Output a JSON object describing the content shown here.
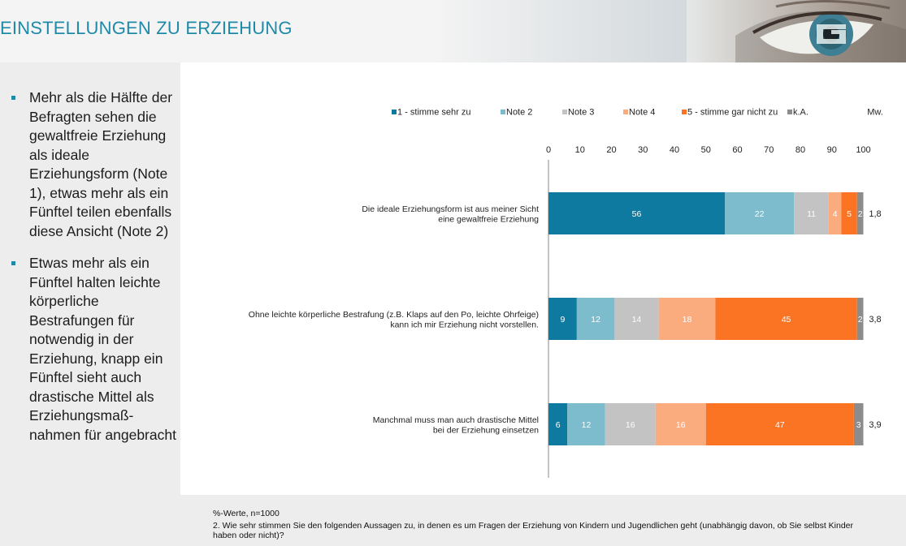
{
  "header": {
    "title": "EINSTELLUNGEN ZU ERZIEHUNG"
  },
  "bullets": [
    "Mehr als die Hälfte der Befragten sehen die gewaltfreie Erziehung als ideale Erziehungsform (Note 1), etwas mehr als ein Fünftel teilen ebenfalls diese Ansicht (Note 2)",
    "Etwas mehr als ein Fünftel halten leichte körperliche Bestrafungen für notwendig in der Erziehung, knapp ein Fünftel sieht auch drastische Mittel als Erziehungsmaß-nahmen für angebracht"
  ],
  "footer": {
    "note": "%-Werte, n=1000",
    "question": "2. Wie sehr stimmen Sie den folgenden Aussagen zu, in denen es um Fragen der Erziehung von Kindern und Jugendlichen geht (unabhängig davon, ob Sie selbst Kinder haben oder nicht)?"
  },
  "colors": {
    "accent": "#1f8aa8"
  },
  "chart_data": {
    "type": "bar",
    "orientation": "horizontal",
    "stacked": true,
    "xlim": [
      0,
      100
    ],
    "ticks": [
      0,
      10,
      20,
      30,
      40,
      50,
      60,
      70,
      80,
      90,
      100
    ],
    "mean_header": "Mw.",
    "legend_position": "top",
    "categories": [
      [
        "Die ideale Erziehungsform ist aus meiner Sicht",
        "eine gewaltfreie Erziehung"
      ],
      [
        "Ohne leichte körperliche Bestrafung (z.B. Klaps auf den Po, leichte Ohrfeige)",
        "kann ich mir Erziehung nicht vorstellen."
      ],
      [
        "Manchmal muss man auch drastische Mittel",
        "bei der Erziehung einsetzen"
      ]
    ],
    "series": [
      {
        "name": "1 - stimme sehr zu",
        "color": "#0f7aa0",
        "values": [
          56,
          9,
          6
        ]
      },
      {
        "name": "Note 2",
        "color": "#7cbccc",
        "values": [
          22,
          12,
          12
        ]
      },
      {
        "name": "Note 3",
        "color": "#c3c3c3",
        "values": [
          11,
          14,
          16
        ]
      },
      {
        "name": "Note 4",
        "color": "#fbac7e",
        "values": [
          4,
          18,
          16
        ]
      },
      {
        "name": "5 - stimme gar nicht zu",
        "color": "#fb7424",
        "values": [
          5,
          45,
          47
        ]
      },
      {
        "name": "k.A.",
        "color": "#8c8c8c",
        "values": [
          2,
          2,
          3
        ]
      }
    ],
    "means": [
      "1,8",
      "3,8",
      "3,9"
    ]
  }
}
